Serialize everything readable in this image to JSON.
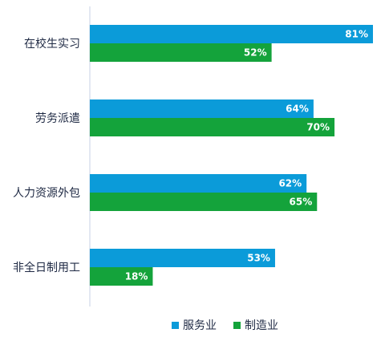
{
  "chart_data": {
    "type": "bar",
    "orientation": "horizontal",
    "title": "",
    "xlabel": "",
    "ylabel": "",
    "xlim": [
      0,
      100
    ],
    "grid": false,
    "legend_position": "bottom-center",
    "categories": [
      "在校生实习",
      "劳务派遣",
      "人力资源外包",
      "非全日制用工"
    ],
    "series": [
      {
        "name": "服务业",
        "color": "#0B9BD9",
        "values": [
          81,
          64,
          62,
          53
        ],
        "labels": [
          "81%",
          "64%",
          "62%",
          "53%"
        ]
      },
      {
        "name": "制造业",
        "color": "#14A33B",
        "values": [
          52,
          70,
          65,
          18
        ],
        "labels": [
          "52%",
          "70%",
          "65%",
          "18%"
        ]
      }
    ]
  }
}
